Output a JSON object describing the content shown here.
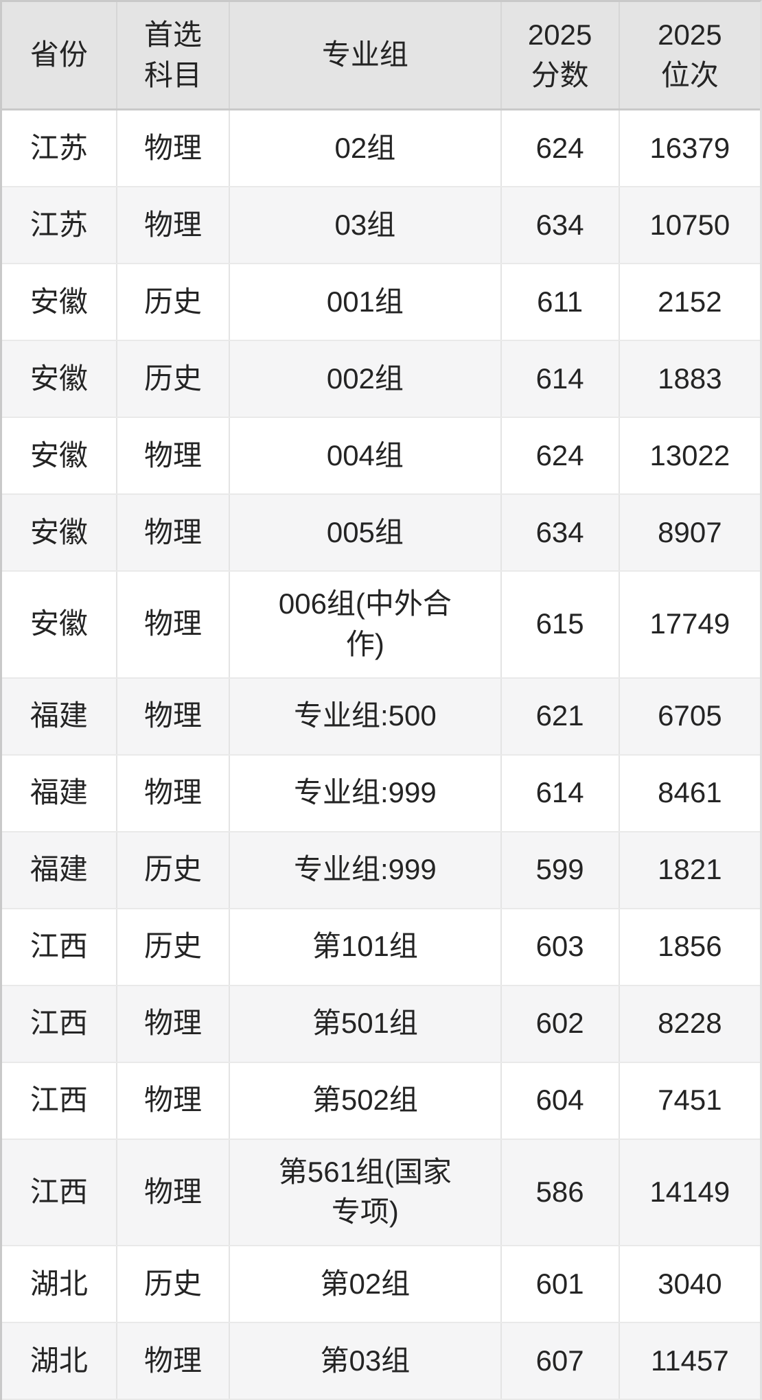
{
  "table": {
    "header_labels": [
      "省份",
      "首选\n科目",
      "专业组",
      "2025\n分数",
      "2025\n位次"
    ],
    "columns": [
      "province",
      "subject",
      "group",
      "score",
      "rank"
    ],
    "rows": [
      {
        "province": "江苏",
        "subject": "物理",
        "group": "02组",
        "score": "624",
        "rank": "16379"
      },
      {
        "province": "江苏",
        "subject": "物理",
        "group": "03组",
        "score": "634",
        "rank": "10750"
      },
      {
        "province": "安徽",
        "subject": "历史",
        "group": "001组",
        "score": "611",
        "rank": "2152"
      },
      {
        "province": "安徽",
        "subject": "历史",
        "group": "002组",
        "score": "614",
        "rank": "1883"
      },
      {
        "province": "安徽",
        "subject": "物理",
        "group": "004组",
        "score": "624",
        "rank": "13022"
      },
      {
        "province": "安徽",
        "subject": "物理",
        "group": "005组",
        "score": "634",
        "rank": "8907"
      },
      {
        "province": "安徽",
        "subject": "物理",
        "group": "006组(中外合作)",
        "score": "615",
        "rank": "17749"
      },
      {
        "province": "福建",
        "subject": "物理",
        "group": "专业组:500",
        "score": "621",
        "rank": "6705"
      },
      {
        "province": "福建",
        "subject": "物理",
        "group": "专业组:999",
        "score": "614",
        "rank": "8461"
      },
      {
        "province": "福建",
        "subject": "历史",
        "group": "专业组:999",
        "score": "599",
        "rank": "1821"
      },
      {
        "province": "江西",
        "subject": "历史",
        "group": "第101组",
        "score": "603",
        "rank": "1856"
      },
      {
        "province": "江西",
        "subject": "物理",
        "group": "第501组",
        "score": "602",
        "rank": "8228"
      },
      {
        "province": "江西",
        "subject": "物理",
        "group": "第502组",
        "score": "604",
        "rank": "7451"
      },
      {
        "province": "江西",
        "subject": "物理",
        "group": "第561组(国家专项)",
        "score": "586",
        "rank": "14149"
      },
      {
        "province": "湖北",
        "subject": "历史",
        "group": "第02组",
        "score": "601",
        "rank": "3040"
      },
      {
        "province": "湖北",
        "subject": "物理",
        "group": "第03组",
        "score": "607",
        "rank": "11457"
      }
    ]
  },
  "colors": {
    "header_bg": "#e4e4e4",
    "row_bg": "#ffffff",
    "row_alt_bg": "#f5f5f6",
    "text": "#242424",
    "outer_border": "#c9c9c9",
    "divider": "#e4e4e4"
  }
}
